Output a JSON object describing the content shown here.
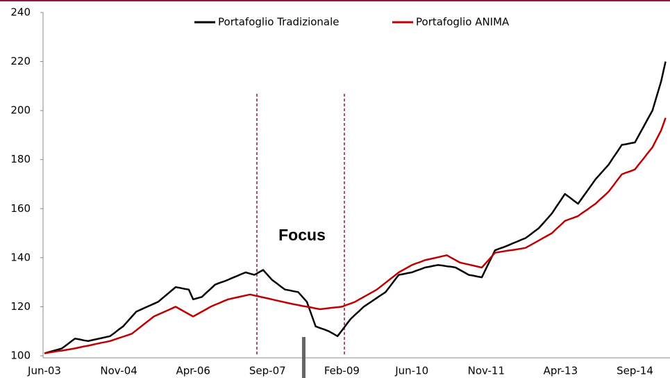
{
  "chart_data": {
    "type": "line",
    "categories": [
      "Jun-03",
      null,
      null,
      null,
      null,
      null,
      null,
      null,
      null,
      null,
      null,
      null,
      null,
      null,
      null,
      null,
      null,
      "Nov-04",
      null,
      null,
      null,
      null,
      null,
      null,
      null,
      null,
      null,
      null,
      null,
      null,
      null,
      null,
      null,
      null,
      "Apr-06",
      null,
      null,
      null,
      null,
      null,
      null,
      null,
      null,
      null,
      null,
      null,
      null,
      null,
      null,
      null,
      null,
      "Sep-07",
      null,
      null,
      null,
      null,
      null,
      null,
      null,
      null,
      null,
      null,
      null,
      null,
      null,
      null,
      null,
      null,
      "Feb-09",
      null,
      null,
      null,
      null,
      null,
      null,
      null,
      null,
      null,
      null,
      null,
      null,
      null,
      null,
      null,
      "Jun-10",
      null,
      null,
      null,
      null,
      null,
      null,
      null,
      null,
      null,
      null,
      null,
      null,
      null,
      null,
      null,
      null,
      "Nov-11",
      null,
      null,
      null,
      null,
      null,
      null,
      null,
      null,
      null,
      null,
      null,
      null,
      null,
      null,
      null,
      null,
      "Apr-13",
      null,
      null,
      null,
      null,
      null,
      null,
      null,
      null,
      null,
      null,
      null,
      null,
      null,
      null,
      null,
      null,
      "Sep-14",
      null,
      null,
      null,
      null,
      null,
      null,
      null
    ],
    "series": [
      {
        "name": "Portafoglio Tradizionale",
        "color": "#000000",
        "values": [
          101,
          101.5,
          102,
          102.5,
          103,
          104.3,
          105.7,
          107,
          106.7,
          106.3,
          106,
          106.4,
          106.8,
          107.2,
          107.6,
          108,
          109.3,
          110.7,
          112,
          114,
          116,
          118,
          118.8,
          119.6,
          120.4,
          121.2,
          122,
          123.5,
          125,
          126.5,
          128,
          127.7,
          127.3,
          127,
          123,
          123.5,
          124,
          125.7,
          127.3,
          129,
          129.7,
          130.3,
          131,
          131.8,
          132.5,
          133.3,
          134,
          133.5,
          133,
          134,
          135,
          133,
          131,
          129.7,
          128.3,
          127,
          126.7,
          126.3,
          126,
          124,
          122,
          117,
          112,
          111.3,
          110.7,
          110,
          109,
          108,
          110.3,
          112.7,
          115,
          116.7,
          118.3,
          120,
          121.2,
          122.4,
          123.6,
          124.8,
          126,
          128.3,
          130.7,
          133,
          133.3,
          133.7,
          134,
          134.7,
          135.3,
          136,
          136.3,
          136.7,
          137,
          136.8,
          136.5,
          136.3,
          136,
          135,
          134,
          133,
          132.7,
          132.3,
          132,
          135.7,
          139.3,
          143,
          143.7,
          144.3,
          145,
          145.8,
          146.5,
          147.3,
          148,
          149.3,
          150.7,
          152,
          154,
          156,
          158,
          160.7,
          163.3,
          166,
          164.7,
          163.3,
          162,
          164.5,
          167,
          169.5,
          172,
          174,
          176,
          178,
          180.7,
          183.3,
          186,
          186.3,
          186.7,
          187,
          190.3,
          193.5,
          196.8,
          200,
          206,
          212,
          220
        ]
      },
      {
        "name": "Portafoglio ANIMA",
        "color": "#c00000",
        "values": [
          101,
          101.3,
          101.6,
          101.9,
          102.1,
          102.4,
          102.7,
          103,
          103.4,
          103.8,
          104.1,
          104.5,
          104.9,
          105.3,
          105.6,
          106,
          106.6,
          107.2,
          107.8,
          108.4,
          109,
          110.4,
          111.8,
          113.2,
          114.6,
          116,
          116.8,
          117.6,
          118.4,
          119.2,
          120,
          119,
          118,
          117,
          116,
          117,
          118,
          119,
          120,
          120.8,
          121.5,
          122.3,
          123,
          123.4,
          123.8,
          124.2,
          124.6,
          125,
          124.6,
          124.2,
          123.8,
          123.4,
          123,
          122.6,
          122.2,
          121.8,
          121.4,
          121,
          120.7,
          120.3,
          120,
          119.7,
          119.3,
          119,
          119.2,
          119.4,
          119.6,
          119.8,
          120,
          120.7,
          121.3,
          122,
          123,
          124,
          125,
          126,
          127,
          128.4,
          129.8,
          131.2,
          132.6,
          134,
          135,
          136,
          137,
          137.7,
          138.3,
          139,
          139.4,
          139.8,
          140.2,
          140.6,
          141,
          140,
          139,
          138,
          137.6,
          137.2,
          136.8,
          136.4,
          136,
          138,
          140,
          142,
          142.3,
          142.6,
          142.9,
          143.1,
          143.4,
          143.7,
          144,
          145,
          146,
          147,
          148,
          149,
          150,
          151.7,
          153.3,
          155,
          155.7,
          156.3,
          157,
          158.3,
          159.5,
          160.8,
          162,
          163.7,
          165.3,
          167,
          169.3,
          171.7,
          174,
          174.7,
          175.3,
          176,
          178.3,
          180.5,
          182.8,
          185,
          188.5,
          192,
          197
        ]
      }
    ],
    "ylim": [
      100,
      240
    ],
    "yticks": [
      100,
      120,
      140,
      160,
      180,
      200,
      220,
      240
    ],
    "annotation": "Focus",
    "legend": "top",
    "grid": false
  }
}
